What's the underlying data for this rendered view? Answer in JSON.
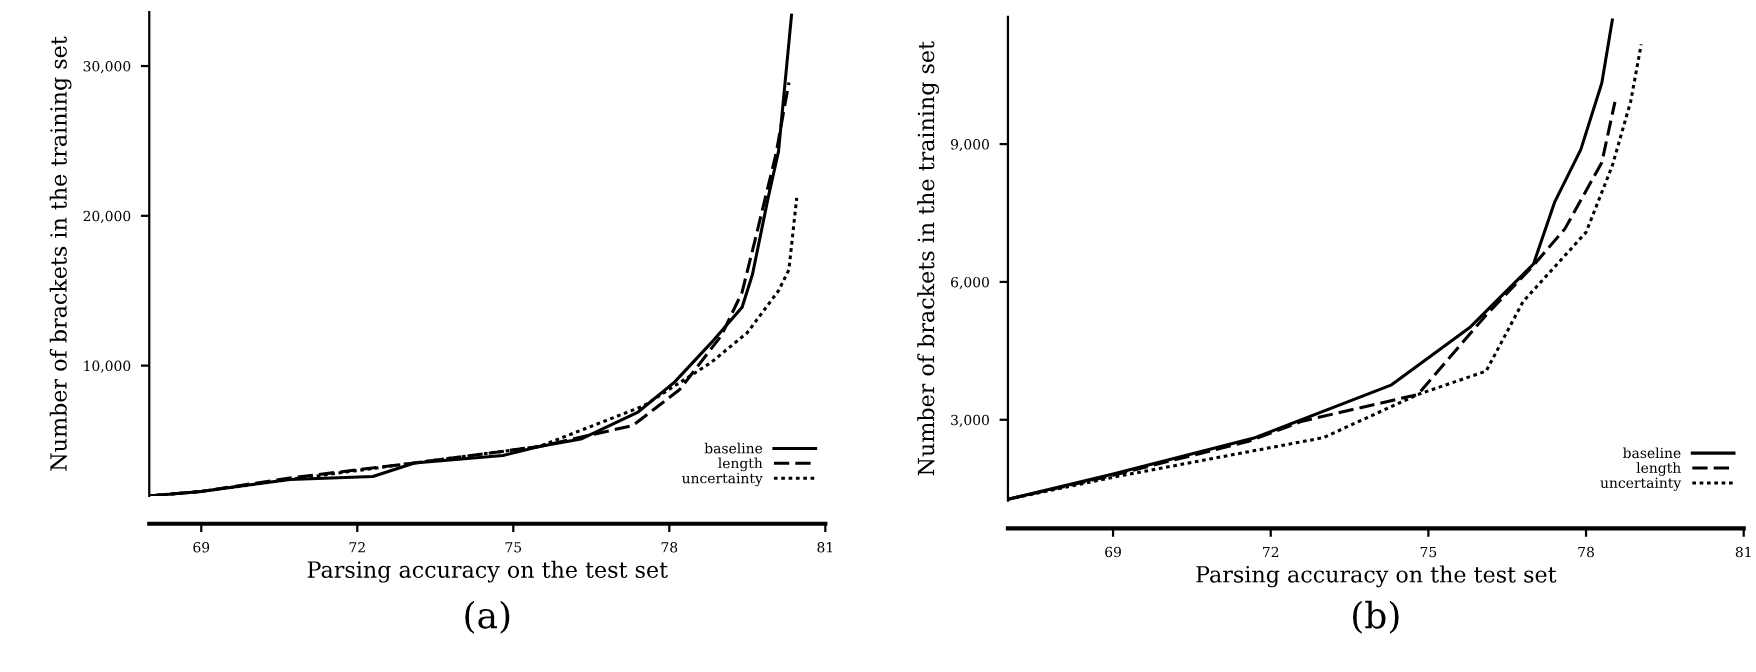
{
  "chart_data": [
    {
      "type": "line",
      "xlabel": "Parsing accuracy on the test set",
      "ylabel": "Number of brackets in the training set",
      "annotations": [
        "(a)"
      ],
      "xlim": [
        68,
        81
      ],
      "xticks": [
        69,
        72,
        75,
        78,
        81
      ],
      "ylim": [
        1300,
        33600
      ],
      "yticks": [
        {
          "value": 10000,
          "label": "10,000"
        },
        {
          "value": 20000,
          "label": "20,000"
        },
        {
          "value": 30000,
          "label": "30,000"
        }
      ],
      "grid": false,
      "legend": "bottom right",
      "series": [
        {
          "name": "baseline",
          "color": "#000000",
          "line_style": "solid",
          "x": [
            68.0,
            69.0,
            70.7,
            72.3,
            73.1,
            74.8,
            75.5,
            76.3,
            77.4,
            78.1,
            78.8,
            79.4,
            79.6,
            79.9,
            80.1,
            80.35
          ],
          "values": [
            1300,
            1600,
            2400,
            2600,
            3500,
            4000,
            4600,
            5100,
            6900,
            8900,
            11500,
            13900,
            16100,
            21200,
            24300,
            33400
          ]
        },
        {
          "name": "length",
          "color": "#000000",
          "line_style": "dashed",
          "x": [
            68.0,
            69.0,
            70.7,
            73.1,
            75.5,
            77.3,
            78.2,
            79.0,
            79.4,
            79.65,
            80.05,
            80.3
          ],
          "values": [
            1300,
            1600,
            2500,
            3500,
            4600,
            6000,
            8400,
            12000,
            14900,
            18400,
            24100,
            28900
          ]
        },
        {
          "name": "uncertainty",
          "color": "#000000",
          "line_style": "dotted",
          "x": [
            68.0,
            69.0,
            70.7,
            73.1,
            75.5,
            77.5,
            78.8,
            79.5,
            80.1,
            80.3,
            80.45
          ],
          "values": [
            1300,
            1600,
            2400,
            3500,
            4600,
            7300,
            10200,
            12200,
            15000,
            16400,
            21200
          ]
        }
      ]
    },
    {
      "type": "line",
      "xlabel": "Parsing accuracy on the test set",
      "ylabel": "Number of brackets in the training set",
      "annotations": [
        "(b)"
      ],
      "xlim": [
        67,
        81
      ],
      "xticks": [
        69,
        72,
        75,
        78,
        81
      ],
      "ylim": [
        1240,
        11770
      ],
      "yticks": [
        {
          "value": 3000,
          "label": "3,000"
        },
        {
          "value": 6000,
          "label": "6,000"
        },
        {
          "value": 9000,
          "label": "9,000"
        }
      ],
      "grid": false,
      "legend": "bottom right",
      "series": [
        {
          "name": "baseline",
          "color": "#000000",
          "line_style": "solid",
          "x": [
            67.0,
            69.0,
            71.7,
            74.3,
            75.8,
            77.0,
            77.4,
            77.9,
            78.3,
            78.5
          ],
          "values": [
            1270,
            1820,
            2610,
            3760,
            5020,
            6390,
            7730,
            8880,
            10330,
            11700
          ]
        },
        {
          "name": "length",
          "color": "#000000",
          "line_style": "dashed",
          "x": [
            67.0,
            69.0,
            71.6,
            72.6,
            74.8,
            76.1,
            77.0,
            77.6,
            78.3,
            78.55
          ],
          "values": [
            1270,
            1790,
            2540,
            2970,
            3550,
            5280,
            6360,
            7160,
            8600,
            9920
          ]
        },
        {
          "name": "uncertainty",
          "color": "#000000",
          "line_style": "dotted",
          "x": [
            67.0,
            69.0,
            73.0,
            74.8,
            76.1,
            76.8,
            78.0,
            78.5,
            78.85,
            79.05
          ],
          "values": [
            1270,
            1750,
            2610,
            3550,
            4060,
            5570,
            7080,
            8530,
            9930,
            11170
          ]
        }
      ]
    }
  ]
}
